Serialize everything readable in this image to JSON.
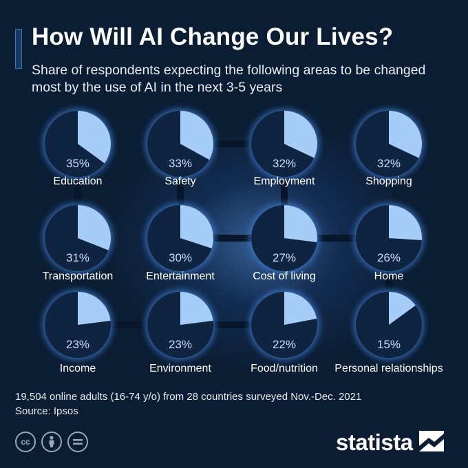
{
  "header": {
    "title": "How Will AI Change Our Lives?",
    "subtitle": "Share of respondents expecting the following areas to be changed most by the use of AI in the next 3-5 years"
  },
  "footer": {
    "note": "19,504 online adults (16-74 y/o) from 28 countries surveyed Nov.-Dec. 2021",
    "source": "Source: Ipsos",
    "brand": "statista",
    "license_icons": [
      "cc-icon",
      "attribution-icon",
      "no-derivatives-icon"
    ]
  },
  "colors": {
    "background": "#0b1d33",
    "pie_fill": "#a6cdf7",
    "pie_base": "#0f2440",
    "pie_glow": "#3f7fd6",
    "value_text": "#c8deff"
  },
  "chart_data": {
    "type": "pie",
    "unit": "%",
    "categories": [
      "Education",
      "Safety",
      "Employment",
      "Shopping",
      "Transportation",
      "Entertainment",
      "Cost of living",
      "Home",
      "Income",
      "Environment",
      "Food/nutrition",
      "Personal relationships"
    ],
    "values": [
      35,
      33,
      32,
      32,
      31,
      30,
      27,
      26,
      23,
      23,
      22,
      15
    ],
    "value_labels": [
      "35%",
      "33%",
      "32%",
      "32%",
      "31%",
      "30%",
      "27%",
      "26%",
      "23%",
      "23%",
      "22%",
      "15%"
    ]
  }
}
